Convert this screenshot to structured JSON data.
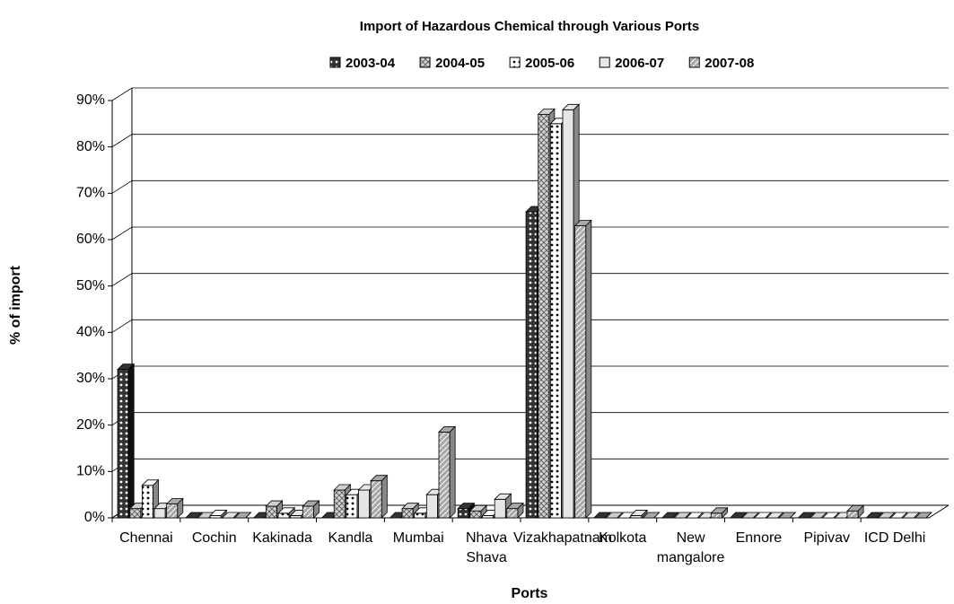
{
  "chart_data": {
    "type": "bar3d",
    "title": "Import of Hazardous Chemical through Various Ports",
    "x_label": "Ports",
    "y_label": "% of import",
    "categories": [
      "Chennai",
      "Cochin",
      "Kakinada",
      "Kandla",
      "Mumbai",
      "Nhava Shava",
      "Vizakhapatnam",
      "Kolkota",
      "New mangalore",
      "Ennore",
      "Pipivav",
      "ICD Delhi"
    ],
    "series": [
      {
        "name": "2003-04",
        "color": "#333333",
        "values": [
          32,
          0,
          0,
          0,
          0,
          2,
          66,
          0,
          0,
          0,
          0,
          0
        ]
      },
      {
        "name": "2004-05",
        "color": "#d0d0d0",
        "values": [
          2,
          0,
          2.5,
          6,
          2,
          1.5,
          87,
          0,
          0,
          0,
          0,
          0
        ]
      },
      {
        "name": "2005-06",
        "color": "#ffffff",
        "values": [
          7,
          0.5,
          1,
          5,
          1,
          0.5,
          85,
          0,
          0,
          0,
          0,
          0
        ]
      },
      {
        "name": "2006-07",
        "color": "#e6e6e6",
        "values": [
          2,
          0,
          0.5,
          6,
          5,
          4,
          88,
          0.5,
          0,
          0,
          0,
          0
        ]
      },
      {
        "name": "2007-08",
        "color": "#a8a8a8",
        "values": [
          3,
          0,
          2.5,
          8,
          18.5,
          2,
          63,
          0,
          1,
          0,
          1.5,
          0
        ]
      }
    ],
    "ylim": [
      0,
      90
    ],
    "yticks": [
      {
        "value": 0,
        "label": "0%"
      },
      {
        "value": 10,
        "label": "10%"
      },
      {
        "value": 20,
        "label": "20%"
      },
      {
        "value": 30,
        "label": "30%"
      },
      {
        "value": 40,
        "label": "40%"
      },
      {
        "value": 50,
        "label": "50%"
      },
      {
        "value": 60,
        "label": "60%"
      },
      {
        "value": 70,
        "label": "70%"
      },
      {
        "value": 80,
        "label": "80%"
      },
      {
        "value": 90,
        "label": "90%"
      }
    ],
    "grid": true
  }
}
